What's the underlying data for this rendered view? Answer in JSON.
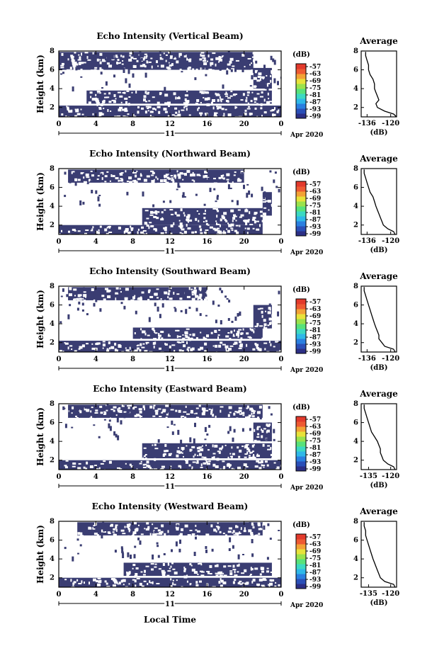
{
  "page": {
    "background": "#ffffff"
  },
  "footer": {
    "xlabel": "Local Time"
  },
  "colors": {
    "echo_fill": "#3a3d72",
    "colorbar": [
      "#2c2f86",
      "#2a4fb8",
      "#2a7fe0",
      "#2fb8e8",
      "#3cd9c2",
      "#58e27a",
      "#9be24c",
      "#e8e23a",
      "#f3a236",
      "#ee5a33",
      "#e23a2c"
    ]
  },
  "chart_data": [
    {
      "type": "heatmap",
      "title": "Echo Intensity (Vertical Beam)",
      "ylabel": "Height (km)",
      "x_ticks": [
        "0",
        "4",
        "8",
        "12",
        "16",
        "20",
        "0"
      ],
      "y_ticks": [
        "2",
        "4",
        "6",
        "8"
      ],
      "xlim": [
        0,
        24
      ],
      "ylim": [
        1,
        8
      ],
      "date_day": "11",
      "date_label": "Apr 2020",
      "colorbar": {
        "unit": "(dB)",
        "ticks": [
          "-57",
          "-63",
          "-69",
          "-75",
          "-81",
          "-87",
          "-93",
          "-99"
        ]
      },
      "echo_regions": [
        {
          "x": [
            0,
            24
          ],
          "y": [
            1.0,
            2.2
          ]
        },
        {
          "x": [
            3,
            23
          ],
          "y": [
            2.4,
            3.8
          ]
        },
        {
          "x": [
            0,
            21
          ],
          "y": [
            6.0,
            7.9
          ]
        },
        {
          "x": [
            21,
            23
          ],
          "y": [
            4.0,
            6.2
          ]
        }
      ],
      "profile": {
        "title": "Average",
        "xlabel": "(dB)",
        "x_ticks": [
          "-136",
          "-120"
        ],
        "xlim": [
          -140,
          -116
        ],
        "ylim": [
          1,
          8
        ],
        "y_ticks": [
          "2",
          "4",
          "6",
          "8"
        ],
        "heights": [
          1.0,
          1.3,
          1.6,
          2.0,
          2.4,
          2.8,
          3.2,
          3.6,
          4.0,
          4.5,
          5.0,
          5.5,
          6.0,
          6.5,
          7.0,
          7.5,
          7.9
        ],
        "values": [
          -116,
          -118,
          -124,
          -129,
          -130,
          -128,
          -129,
          -130,
          -131,
          -131,
          -132,
          -134,
          -135,
          -135,
          -136,
          -137,
          -137
        ]
      }
    },
    {
      "type": "heatmap",
      "title": "Echo Intensity (Northward Beam)",
      "ylabel": "Height (km)",
      "x_ticks": [
        "0",
        "4",
        "8",
        "12",
        "16",
        "20",
        "0"
      ],
      "y_ticks": [
        "2",
        "4",
        "6",
        "8"
      ],
      "xlim": [
        0,
        24
      ],
      "ylim": [
        1,
        8
      ],
      "date_day": "11",
      "date_label": "Apr 2020",
      "colorbar": {
        "unit": "(dB)",
        "ticks": [
          "-57",
          "-63",
          "-69",
          "-75",
          "-81",
          "-87",
          "-93",
          "-99"
        ]
      },
      "echo_regions": [
        {
          "x": [
            0,
            22
          ],
          "y": [
            1.0,
            2.0
          ]
        },
        {
          "x": [
            9,
            22
          ],
          "y": [
            2.0,
            3.8
          ]
        },
        {
          "x": [
            1,
            20
          ],
          "y": [
            6.5,
            7.9
          ]
        },
        {
          "x": [
            22,
            23
          ],
          "y": [
            3.0,
            5.5
          ]
        }
      ],
      "profile": {
        "title": "Average",
        "xlabel": "(dB)",
        "x_ticks": [
          "-136",
          "-120"
        ],
        "xlim": [
          -140,
          -116
        ],
        "ylim": [
          1,
          8
        ],
        "y_ticks": [
          "2",
          "4",
          "6",
          "8"
        ],
        "heights": [
          1.0,
          1.3,
          1.6,
          2.0,
          2.4,
          2.8,
          3.2,
          3.6,
          4.0,
          4.5,
          5.0,
          5.5,
          6.0,
          6.5,
          7.0,
          7.5,
          7.9
        ],
        "values": [
          -117,
          -118,
          -122,
          -125,
          -126,
          -127,
          -128,
          -129,
          -130,
          -131,
          -132,
          -134,
          -135,
          -136,
          -137,
          -138,
          -138
        ]
      }
    },
    {
      "type": "heatmap",
      "title": "Echo Intensity (Southward Beam)",
      "ylabel": "Height (km)",
      "x_ticks": [
        "0",
        "4",
        "8",
        "12",
        "16",
        "20",
        "0"
      ],
      "y_ticks": [
        "2",
        "4",
        "6",
        "8"
      ],
      "xlim": [
        0,
        24
      ],
      "ylim": [
        1,
        8
      ],
      "date_day": "11",
      "date_label": "Apr 2020",
      "colorbar": {
        "unit": "(dB)",
        "ticks": [
          "-57",
          "-63",
          "-69",
          "-75",
          "-81",
          "-87",
          "-93",
          "-99"
        ]
      },
      "echo_regions": [
        {
          "x": [
            0,
            24
          ],
          "y": [
            1.0,
            2.2
          ]
        },
        {
          "x": [
            8,
            22
          ],
          "y": [
            2.4,
            3.6
          ]
        },
        {
          "x": [
            1,
            16
          ],
          "y": [
            6.5,
            7.9
          ]
        },
        {
          "x": [
            21,
            23
          ],
          "y": [
            3.5,
            6.0
          ]
        }
      ],
      "profile": {
        "title": "Average",
        "xlabel": "(dB)",
        "x_ticks": [
          "-136",
          "-120"
        ],
        "xlim": [
          -140,
          -116
        ],
        "ylim": [
          1,
          8
        ],
        "y_ticks": [
          "2",
          "4",
          "6",
          "8"
        ],
        "heights": [
          1.0,
          1.3,
          1.6,
          2.0,
          2.4,
          2.8,
          3.2,
          3.6,
          4.0,
          4.5,
          5.0,
          5.5,
          6.0,
          6.5,
          7.0,
          7.5,
          7.9
        ],
        "values": [
          -117,
          -118,
          -124,
          -126,
          -128,
          -128,
          -129,
          -130,
          -131,
          -132,
          -133,
          -134,
          -135,
          -136,
          -137,
          -138,
          -138
        ]
      }
    },
    {
      "type": "heatmap",
      "title": "Echo Intensity (Eastward Beam)",
      "ylabel": "Height (km)",
      "x_ticks": [
        "0",
        "4",
        "8",
        "12",
        "16",
        "20",
        "0"
      ],
      "y_ticks": [
        "2",
        "4",
        "6",
        "8"
      ],
      "xlim": [
        0,
        24
      ],
      "ylim": [
        1,
        8
      ],
      "date_day": "11",
      "date_label": "Apr 2020",
      "colorbar": {
        "unit": "(dB)",
        "ticks": [
          "-57",
          "-63",
          "-69",
          "-75",
          "-81",
          "-87",
          "-93",
          "-99"
        ]
      },
      "echo_regions": [
        {
          "x": [
            0,
            24
          ],
          "y": [
            1.0,
            2.0
          ]
        },
        {
          "x": [
            9,
            23
          ],
          "y": [
            2.2,
            3.8
          ]
        },
        {
          "x": [
            1,
            22
          ],
          "y": [
            6.5,
            7.9
          ]
        },
        {
          "x": [
            21,
            23
          ],
          "y": [
            4.0,
            6.0
          ]
        }
      ],
      "profile": {
        "title": "Average",
        "xlabel": "(dB)",
        "x_ticks": [
          "-135",
          "-120"
        ],
        "xlim": [
          -140,
          -116
        ],
        "ylim": [
          1,
          8
        ],
        "y_ticks": [
          "2",
          "4",
          "6",
          "8"
        ],
        "heights": [
          1.0,
          1.3,
          1.6,
          2.0,
          2.4,
          2.8,
          3.2,
          3.6,
          4.0,
          4.5,
          5.0,
          5.5,
          6.0,
          6.5,
          7.0,
          7.5,
          7.9
        ],
        "values": [
          -117,
          -118,
          -122,
          -125,
          -126,
          -127,
          -127,
          -128,
          -129,
          -131,
          -133,
          -134,
          -135,
          -136,
          -137,
          -138,
          -138
        ]
      }
    },
    {
      "type": "heatmap",
      "title": "Echo Intensity (Westward Beam)",
      "ylabel": "Height (km)",
      "x_ticks": [
        "0",
        "4",
        "8",
        "12",
        "16",
        "20",
        "0"
      ],
      "y_ticks": [
        "2",
        "4",
        "6",
        "8"
      ],
      "xlim": [
        0,
        24
      ],
      "ylim": [
        1,
        8
      ],
      "date_day": "11",
      "date_label": "Apr 2020",
      "colorbar": {
        "unit": "(dB)",
        "ticks": [
          "-57",
          "-63",
          "-69",
          "-75",
          "-81",
          "-87",
          "-93",
          "-99"
        ]
      },
      "echo_regions": [
        {
          "x": [
            0,
            24
          ],
          "y": [
            1.0,
            2.0
          ]
        },
        {
          "x": [
            7,
            23
          ],
          "y": [
            2.2,
            3.6
          ]
        },
        {
          "x": [
            2,
            22
          ],
          "y": [
            6.5,
            7.9
          ]
        }
      ],
      "profile": {
        "title": "Average",
        "xlabel": "(dB)",
        "x_ticks": [
          "-135",
          "-120"
        ],
        "xlim": [
          -140,
          -116
        ],
        "ylim": [
          1,
          8
        ],
        "y_ticks": [
          "2",
          "4",
          "6",
          "8"
        ],
        "heights": [
          1.0,
          1.3,
          1.6,
          2.0,
          2.4,
          2.8,
          3.2,
          3.6,
          4.0,
          4.5,
          5.0,
          5.5,
          6.0,
          6.5,
          7.0,
          7.5,
          7.9
        ],
        "values": [
          -117,
          -118,
          -124,
          -127,
          -128,
          -129,
          -130,
          -131,
          -132,
          -133,
          -134,
          -135,
          -136,
          -137,
          -137,
          -138,
          -138
        ]
      }
    }
  ]
}
